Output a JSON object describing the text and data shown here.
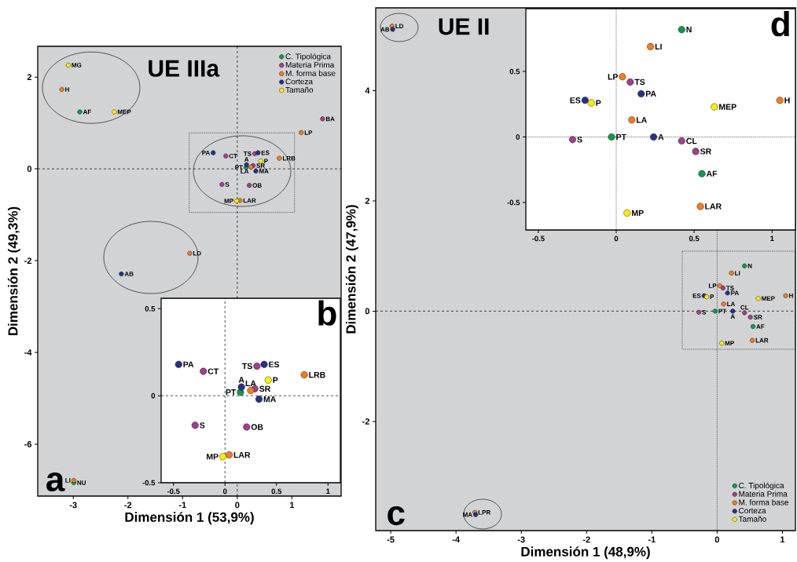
{
  "chart_data": [
    {
      "type": "scatter",
      "title": "UE IIIa",
      "xlabel": "Dimensión 1 (53,9%)",
      "ylabel": "Dimensión 2 (49,3%)",
      "marker": "circle",
      "legend": "top right",
      "xlim": [
        -3.65,
        1.9
      ],
      "ylim": [
        -7.13,
        2.67
      ],
      "xticks": [
        -3,
        -2,
        -1,
        0,
        1
      ],
      "yticks": [
        -6,
        -4,
        -2,
        0,
        2
      ],
      "ref_lines": [
        {
          "axis": "x",
          "value": 0,
          "line_style": "dashed"
        },
        {
          "axis": "y",
          "value": 0,
          "line_style": "dashed"
        }
      ],
      "series": [
        {
          "name": "C. Tipológica",
          "color": "#0f9a4a",
          "x": [
            -2.88,
            -2.99,
            0.16
          ],
          "values": [
            1.24,
            -6.84,
            0.03
          ]
        },
        {
          "name": "Materia Prima",
          "color": "#a0408e",
          "x": [
            1.56,
            -0.21,
            0.32,
            0.29,
            -0.28,
            0.22
          ],
          "values": [
            1.09,
            0.28,
            0.33,
            0.07,
            -0.34,
            -0.36
          ]
        },
        {
          "name": "M. forma base",
          "color": "#f07d22",
          "x": [
            -3.21,
            1.17,
            -0.87,
            -2.99,
            0.77,
            0.25,
            0.05
          ],
          "values": [
            1.73,
            0.79,
            -1.84,
            -6.79,
            0.23,
            0.04,
            -0.69
          ]
        },
        {
          "name": "Corteza",
          "color": "#2b2f88",
          "x": [
            -2.12,
            -0.44,
            0.38,
            0.17,
            0.34
          ],
          "values": [
            -2.29,
            0.35,
            0.35,
            0.09,
            -0.05
          ]
        },
        {
          "name": "Tamaño",
          "color": "#ffee00",
          "x": [
            -3.09,
            -2.25,
            0.43,
            -0.01
          ],
          "values": [
            2.26,
            1.24,
            0.17,
            -0.7
          ]
        }
      ],
      "annotations": [
        "a",
        {
          "text": "AF",
          "x": -2.88,
          "y": 1.24
        },
        {
          "text": "NU",
          "x": -2.99,
          "y": -6.84
        },
        {
          "text": "PT",
          "x": 0.16,
          "y": 0.03
        },
        {
          "text": "BA",
          "x": 1.56,
          "y": 1.09
        },
        {
          "text": "CT",
          "x": -0.21,
          "y": 0.28
        },
        {
          "text": "TS",
          "x": 0.32,
          "y": 0.33
        },
        {
          "text": "SR",
          "x": 0.29,
          "y": 0.07
        },
        {
          "text": "S",
          "x": -0.28,
          "y": -0.34
        },
        {
          "text": "OB",
          "x": 0.22,
          "y": -0.36
        },
        {
          "text": "H",
          "x": -3.21,
          "y": 1.73
        },
        {
          "text": "LP",
          "x": 1.17,
          "y": 0.79
        },
        {
          "text": "LD",
          "x": -0.87,
          "y": -1.84
        },
        {
          "text": "LI",
          "x": -2.99,
          "y": -6.79
        },
        {
          "text": "LRB",
          "x": 0.77,
          "y": 0.23
        },
        {
          "text": "LA",
          "x": 0.25,
          "y": 0.04
        },
        {
          "text": "LAR",
          "x": 0.05,
          "y": -0.69
        },
        {
          "text": "AB",
          "x": -2.12,
          "y": -2.29
        },
        {
          "text": "PA",
          "x": -0.44,
          "y": 0.35
        },
        {
          "text": "ES",
          "x": 0.38,
          "y": 0.35
        },
        {
          "text": "A",
          "x": 0.17,
          "y": 0.09
        },
        {
          "text": "MA",
          "x": 0.34,
          "y": -0.05
        },
        {
          "text": "MG",
          "x": -3.09,
          "y": 2.26
        },
        {
          "text": "MEP",
          "x": -2.25,
          "y": 1.24
        },
        {
          "text": "P",
          "x": 0.43,
          "y": 0.17
        },
        {
          "text": "MP",
          "x": -0.01,
          "y": -0.7
        }
      ]
    },
    {
      "type": "scatter",
      "marker": "circle",
      "xlim": [
        -0.62,
        1.12
      ],
      "ylim": [
        -0.5,
        0.56
      ],
      "xticks": [
        -0.5,
        0,
        0.5,
        1
      ],
      "yticks": [
        -0.5,
        0,
        0.5
      ],
      "ref_lines": [
        {
          "axis": "x",
          "value": 0,
          "line_style": "dashed"
        },
        {
          "axis": "y",
          "value": 0,
          "line_style": "dashed"
        }
      ],
      "series": [
        {
          "color": "#0f9a4a",
          "x": [
            0.15
          ],
          "values": [
            0.02
          ]
        },
        {
          "color": "#a0408e",
          "x": [
            -0.21,
            0.31,
            0.29,
            -0.29,
            0.21
          ],
          "values": [
            0.14,
            0.17,
            0.04,
            -0.17,
            -0.18
          ]
        },
        {
          "color": "#f07d22",
          "x": [
            0.77,
            0.25,
            0.04
          ],
          "values": [
            0.12,
            0.03,
            -0.34
          ]
        },
        {
          "color": "#2b2f88",
          "x": [
            -0.45,
            0.38,
            0.16,
            0.33
          ],
          "values": [
            0.18,
            0.18,
            0.05,
            -0.02
          ]
        },
        {
          "color": "#ffee00",
          "x": [
            0.42,
            -0.02
          ],
          "values": [
            0.09,
            -0.35
          ]
        }
      ],
      "annotations": [
        "b",
        {
          "text": "PT",
          "x": 0.15,
          "y": 0.02
        },
        {
          "text": "CT",
          "x": -0.21,
          "y": 0.14
        },
        {
          "text": "TS",
          "x": 0.31,
          "y": 0.17
        },
        {
          "text": "SR",
          "x": 0.29,
          "y": 0.04
        },
        {
          "text": "S",
          "x": -0.29,
          "y": -0.17
        },
        {
          "text": "OB",
          "x": 0.21,
          "y": -0.18
        },
        {
          "text": "LRB",
          "x": 0.77,
          "y": 0.12
        },
        {
          "text": "LA",
          "x": 0.25,
          "y": 0.03
        },
        {
          "text": "LAR",
          "x": 0.04,
          "y": -0.34
        },
        {
          "text": "PA",
          "x": -0.45,
          "y": 0.18
        },
        {
          "text": "ES",
          "x": 0.38,
          "y": 0.18
        },
        {
          "text": "A",
          "x": 0.16,
          "y": 0.05
        },
        {
          "text": "MA",
          "x": 0.33,
          "y": -0.02
        },
        {
          "text": "P",
          "x": 0.42,
          "y": 0.09
        },
        {
          "text": "MP",
          "x": -0.02,
          "y": -0.35
        }
      ]
    },
    {
      "type": "scatter",
      "title": "UE II",
      "xlabel": "Dimensión 1 (48,9%)",
      "ylabel": "Dimensión 2 (47,9%)",
      "marker": "circle",
      "legend": "bottom right",
      "xlim": [
        -5.23,
        1.2
      ],
      "ylim": [
        -3.98,
        5.5
      ],
      "xticks": [
        -5,
        -4,
        -3,
        -2,
        -1,
        0,
        1
      ],
      "yticks": [
        -2,
        0,
        2,
        4
      ],
      "ref_lines": [
        {
          "axis": "x",
          "value": 0,
          "line_style": "dotted"
        },
        {
          "axis": "y",
          "value": 0,
          "line_style": "dashed"
        }
      ],
      "series": [
        {
          "name": "C. Tipológica",
          "color": "#0f9a4a",
          "x": [
            0.42,
            -0.03,
            0.55
          ],
          "values": [
            0.82,
            0,
            -0.28
          ]
        },
        {
          "name": "Materia Prima",
          "color": "#a0408e",
          "x": [
            0.09,
            -0.28,
            0.42,
            0.51
          ],
          "values": [
            0.42,
            -0.02,
            -0.03,
            -0.11
          ]
        },
        {
          "name": "M. forma base",
          "color": "#f07d22",
          "x": [
            0.22,
            0.04,
            1.05,
            0.1,
            0.54,
            -4.98,
            -3.71
          ],
          "values": [
            0.69,
            0.46,
            0.28,
            0.13,
            -0.53,
            5.17,
            -3.65
          ]
        },
        {
          "name": "Corteza",
          "color": "#2b2f88",
          "x": [
            0.16,
            -0.2,
            0.24,
            -4.97,
            -3.7
          ],
          "values": [
            0.33,
            0.28,
            0,
            5.11,
            -3.69
          ]
        },
        {
          "name": "Tamaño",
          "color": "#ffee00",
          "x": [
            -0.16,
            0.63,
            0.07
          ],
          "values": [
            0.26,
            0.23,
            -0.58
          ]
        }
      ],
      "annotations": [
        "c",
        {
          "text": "N",
          "x": 0.42,
          "y": 0.82
        },
        {
          "text": "PT",
          "x": -0.03,
          "y": 0
        },
        {
          "text": "AF",
          "x": 0.55,
          "y": -0.28
        },
        {
          "text": "TS",
          "x": 0.09,
          "y": 0.42
        },
        {
          "text": "S",
          "x": -0.28,
          "y": -0.02
        },
        {
          "text": "CL",
          "x": 0.42,
          "y": -0.03
        },
        {
          "text": "SR",
          "x": 0.51,
          "y": -0.11
        },
        {
          "text": "LI",
          "x": 0.22,
          "y": 0.69
        },
        {
          "text": "LP",
          "x": 0.04,
          "y": 0.46
        },
        {
          "text": "H",
          "x": 1.05,
          "y": 0.28
        },
        {
          "text": "LA",
          "x": 0.1,
          "y": 0.13
        },
        {
          "text": "LAR",
          "x": 0.54,
          "y": -0.53
        },
        {
          "text": "LD",
          "x": -4.98,
          "y": 5.17
        },
        {
          "text": "LPR",
          "x": -3.71,
          "y": -3.65
        },
        {
          "text": "PA",
          "x": 0.16,
          "y": 0.33
        },
        {
          "text": "ES",
          "x": -0.2,
          "y": 0.28
        },
        {
          "text": "A",
          "x": 0.24,
          "y": 0
        },
        {
          "text": "AB",
          "x": -4.97,
          "y": 5.11
        },
        {
          "text": "MA",
          "x": -3.7,
          "y": -3.69
        },
        {
          "text": "P",
          "x": -0.16,
          "y": 0.26
        },
        {
          "text": "MEP",
          "x": 0.63,
          "y": 0.23
        },
        {
          "text": "MP",
          "x": 0.07,
          "y": -0.58
        }
      ]
    },
    {
      "type": "scatter",
      "marker": "circle",
      "xlim": [
        -0.58,
        1.15
      ],
      "ylim": [
        -0.71,
        0.98
      ],
      "xticks": [
        -0.5,
        0,
        0.5,
        1
      ],
      "yticks": [
        -0.5,
        0,
        0.5
      ],
      "ref_lines": [
        {
          "axis": "x",
          "value": 0,
          "line_style": "dotted"
        },
        {
          "axis": "y",
          "value": 0,
          "line_style": "dotted"
        }
      ],
      "series": [
        {
          "color": "#0f9a4a",
          "x": [
            0.42,
            -0.03,
            0.55
          ],
          "values": [
            0.82,
            0,
            -0.28
          ]
        },
        {
          "color": "#a0408e",
          "x": [
            0.09,
            -0.28,
            0.42,
            0.51
          ],
          "values": [
            0.42,
            -0.02,
            -0.03,
            -0.11
          ]
        },
        {
          "color": "#f07d22",
          "x": [
            0.22,
            0.04,
            1.05,
            0.1,
            0.54
          ],
          "values": [
            0.69,
            0.46,
            0.28,
            0.13,
            -0.53
          ]
        },
        {
          "color": "#2b2f88",
          "x": [
            0.16,
            -0.2,
            0.24
          ],
          "values": [
            0.33,
            0.28,
            0
          ]
        },
        {
          "color": "#ffee00",
          "x": [
            -0.16,
            0.63,
            0.07
          ],
          "values": [
            0.26,
            0.23,
            -0.58
          ]
        }
      ],
      "annotations": [
        "d",
        {
          "text": "N",
          "x": 0.42,
          "y": 0.82
        },
        {
          "text": "PT",
          "x": -0.03,
          "y": 0
        },
        {
          "text": "AF",
          "x": 0.55,
          "y": -0.28
        },
        {
          "text": "TS",
          "x": 0.09,
          "y": 0.42
        },
        {
          "text": "S",
          "x": -0.28,
          "y": -0.02
        },
        {
          "text": "CL",
          "x": 0.42,
          "y": -0.03
        },
        {
          "text": "SR",
          "x": 0.51,
          "y": -0.11
        },
        {
          "text": "LI",
          "x": 0.22,
          "y": 0.69
        },
        {
          "text": "LP",
          "x": 0.04,
          "y": 0.46
        },
        {
          "text": "H",
          "x": 1.05,
          "y": 0.28
        },
        {
          "text": "LA",
          "x": 0.1,
          "y": 0.13
        },
        {
          "text": "LAR",
          "x": 0.54,
          "y": -0.53
        },
        {
          "text": "PA",
          "x": 0.16,
          "y": 0.33
        },
        {
          "text": "ES",
          "x": -0.2,
          "y": 0.28
        },
        {
          "text": "A",
          "x": 0.24,
          "y": 0
        },
        {
          "text": "P",
          "x": -0.16,
          "y": 0.26
        },
        {
          "text": "MEP",
          "x": 0.63,
          "y": 0.23
        },
        {
          "text": "MP",
          "x": 0.07,
          "y": -0.58
        }
      ]
    }
  ]
}
